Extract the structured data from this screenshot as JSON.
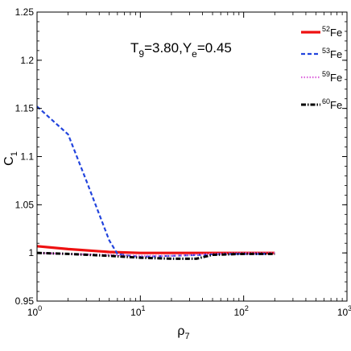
{
  "chart_data": {
    "type": "line",
    "title": "",
    "annotation": {
      "main": "T",
      "sub1": "9",
      "mid": "=3.80,Y",
      "sub2": "e",
      "tail": "=0.45"
    },
    "xlabel": {
      "main": "ρ",
      "sub": "7"
    },
    "ylabel": {
      "main": "C",
      "sub": "1"
    },
    "x_scale": "log",
    "xlim": [
      1,
      1000
    ],
    "ylim": [
      0.95,
      1.25
    ],
    "x_ticks": [
      {
        "value": 1,
        "base": "10",
        "exp": "0"
      },
      {
        "value": 10,
        "base": "10",
        "exp": "1"
      },
      {
        "value": 100,
        "base": "10",
        "exp": "2"
      },
      {
        "value": 1000,
        "base": "10",
        "exp": "3"
      }
    ],
    "y_ticks": [
      {
        "value": 0.95,
        "label": "0.95"
      },
      {
        "value": 1.0,
        "label": "1"
      },
      {
        "value": 1.05,
        "label": "1.05"
      },
      {
        "value": 1.1,
        "label": "1.1"
      },
      {
        "value": 1.15,
        "label": "1.15"
      },
      {
        "value": 1.2,
        "label": "1.2"
      },
      {
        "value": 1.25,
        "label": "1.25"
      }
    ],
    "grid": false,
    "legend_position": "top-right",
    "series": [
      {
        "name": "Fe",
        "mass": "52",
        "color": "#ee1111",
        "style": "solid",
        "x": [
          1,
          2,
          5,
          10,
          20,
          50,
          100,
          200
        ],
        "y": [
          1.007,
          1.004,
          1.001,
          1.0,
          1.0,
          1.0,
          1.0,
          1.0
        ]
      },
      {
        "name": "Fe",
        "mass": "53",
        "color": "#2244dd",
        "style": "dashed",
        "x": [
          1,
          2,
          3,
          5,
          6,
          8,
          10,
          20,
          40,
          60,
          100,
          200
        ],
        "y": [
          1.152,
          1.123,
          1.075,
          1.013,
          0.999,
          0.997,
          0.996,
          0.997,
          0.998,
          0.999,
          0.999,
          0.999
        ]
      },
      {
        "name": "Fe",
        "mass": "59",
        "color": "#dd66dd",
        "style": "dotted",
        "x": [
          1,
          2,
          5,
          10,
          20,
          50,
          100,
          200
        ],
        "y": [
          1.0,
          0.999,
          0.998,
          0.997,
          0.997,
          0.999,
          1.0,
          1.0
        ]
      },
      {
        "name": "Fe",
        "mass": "60",
        "color": "#000000",
        "style": "dashdot",
        "x": [
          1,
          2,
          5,
          10,
          20,
          35,
          50,
          100,
          200
        ],
        "y": [
          1.0,
          0.999,
          0.997,
          0.995,
          0.994,
          0.994,
          0.998,
          0.999,
          0.999
        ]
      }
    ]
  }
}
